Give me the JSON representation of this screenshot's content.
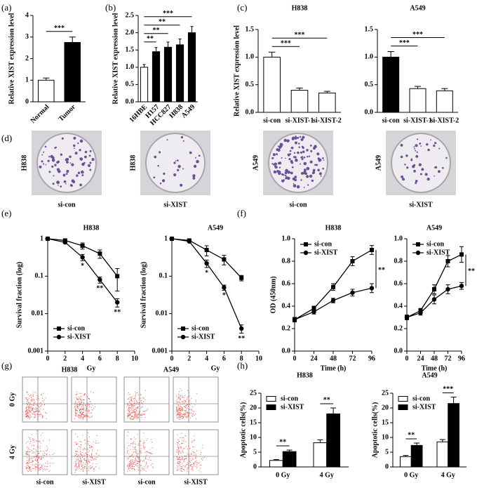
{
  "panel_labels": [
    "(a)",
    "(b)",
    "(c)",
    "(d)",
    "(e)",
    "(f)",
    "(g)",
    "(h)"
  ],
  "colony": {
    "plates": [
      {
        "cell": "H838",
        "group": "si-con"
      },
      {
        "cell": "H838",
        "group": "si-XIST"
      },
      {
        "cell": "A549",
        "group": "si-con"
      },
      {
        "cell": "A549",
        "group": "si-XIST"
      }
    ]
  },
  "flow": {
    "cells": [
      "H838",
      "A549"
    ],
    "doses": [
      "0 Gy",
      "4 Gy"
    ],
    "groups": [
      "si-con",
      "si-XIST",
      "si-con",
      "si-XIST"
    ]
  },
  "chart_data": [
    {
      "type": "bar",
      "categories": [
        "Normal",
        "Tumor"
      ],
      "values": [
        1.0,
        2.75
      ],
      "errors": [
        0.1,
        0.25
      ],
      "colors": [
        "#ffffff",
        "#000000"
      ],
      "y_label": "Relative XIST expression level",
      "ylim": [
        0,
        4
      ],
      "yticks": [
        0,
        1,
        2,
        3,
        4
      ],
      "brackets": [
        {
          "text": "***",
          "between": [
            0,
            1
          ]
        }
      ]
    },
    {
      "type": "bar",
      "categories": [
        "16HBE",
        "H157",
        "HCC827",
        "H838",
        "A549"
      ],
      "values": [
        1.0,
        1.45,
        1.58,
        1.65,
        2.0
      ],
      "errors": [
        0.08,
        0.12,
        0.15,
        0.17,
        0.18
      ],
      "colors": [
        "#ffffff",
        "#000000",
        "#000000",
        "#000000",
        "#000000"
      ],
      "y_label": "Relative XIST expression level",
      "ylim": [
        0,
        2.5
      ],
      "yticks": [
        {
          "value": 0,
          "label": "0.0"
        },
        0.5,
        {
          "value": 1,
          "label": "1.0"
        },
        1.5,
        {
          "value": 2,
          "label": "2.0"
        },
        2.5
      ],
      "brackets": [
        {
          "text": "**",
          "between": [
            0,
            1
          ]
        },
        {
          "text": "**",
          "between": [
            0,
            2
          ]
        },
        {
          "text": "**",
          "between": [
            0,
            3
          ]
        },
        {
          "text": "***",
          "between": [
            0,
            4
          ]
        }
      ]
    },
    {
      "type": "bar",
      "title": "H838",
      "categories": [
        "si-con",
        "si-XIST-1",
        "si-XIST-2"
      ],
      "values": [
        1.0,
        0.4,
        0.35
      ],
      "errors": [
        0.09,
        0.04,
        0.03
      ],
      "colors": [
        "#ffffff",
        "#ffffff",
        "#ffffff"
      ],
      "y_label": "Relative XIST expression  level",
      "ylim": [
        0,
        1.5
      ],
      "yticks": [
        {
          "value": 0,
          "label": "0.0"
        },
        0.5,
        {
          "value": 1,
          "label": "1.0"
        },
        1.5
      ],
      "brackets": [
        {
          "text": "***",
          "between": [
            0,
            1
          ]
        },
        {
          "text": "***",
          "between": [
            0,
            2
          ]
        }
      ]
    },
    {
      "type": "bar",
      "title": "A549",
      "categories": [
        "si-con",
        "si-XIST-1",
        "si-XIST-2"
      ],
      "values": [
        1.0,
        0.43,
        0.39
      ],
      "errors": [
        0.1,
        0.04,
        0.04
      ],
      "colors": [
        "#000000",
        "#ffffff",
        "#ffffff"
      ],
      "ylim": [
        0,
        1.5
      ],
      "yticks": [
        {
          "value": 0,
          "label": "0.0"
        },
        0.5,
        {
          "value": 1,
          "label": "1.0"
        },
        1.5
      ],
      "brackets": [
        {
          "text": "***",
          "between": [
            0,
            1
          ]
        },
        {
          "text": "***",
          "between": [
            0,
            2
          ]
        }
      ]
    },
    {
      "type": "line",
      "title": "H838",
      "x": [
        0,
        2,
        4,
        6,
        8
      ],
      "series": [
        {
          "name": "si-con",
          "color": "#000000",
          "marker": "square",
          "values": [
            1,
            0.9,
            0.65,
            0.4,
            0.1
          ],
          "errors": [
            0,
            0.05,
            0.12,
            0.1,
            0.06
          ]
        },
        {
          "name": "si-XIST",
          "color": "#000000",
          "marker": "circle",
          "values": [
            1,
            0.8,
            0.32,
            0.08,
            0.02
          ],
          "errors": [
            0,
            0.05,
            0.06,
            0.015,
            0.005
          ],
          "point_labels": [
            null,
            null,
            "*",
            "**",
            "**"
          ]
        }
      ],
      "y_label": "Survival fraction (log)",
      "x_label": "Gy",
      "log_y": true,
      "ylim": [
        0.001,
        1
      ],
      "yticks": [
        0.001,
        0.01,
        0.1,
        1
      ],
      "xlim": [
        0,
        10
      ],
      "xticks": [
        0,
        2,
        4,
        6,
        8,
        10
      ],
      "legend": "lower left"
    },
    {
      "type": "line",
      "title": "A549",
      "x": [
        0,
        2,
        4,
        6,
        8
      ],
      "series": [
        {
          "name": "si-con",
          "color": "#000000",
          "marker": "square",
          "values": [
            1,
            0.9,
            0.5,
            0.28,
            0.09
          ],
          "errors": [
            0,
            0.05,
            0.15,
            0.08,
            0.015
          ]
        },
        {
          "name": "si-XIST",
          "color": "#000000",
          "marker": "circle",
          "values": [
            1,
            0.85,
            0.22,
            0.05,
            0.004
          ],
          "errors": [
            0,
            0.05,
            0.05,
            0.008,
            0.001
          ],
          "point_labels": [
            null,
            null,
            "*",
            "*",
            "**"
          ]
        }
      ],
      "y_label": "Survival fraction (log)",
      "x_label": "Gy",
      "log_y": true,
      "ylim": [
        0.001,
        1
      ],
      "yticks": [
        0.001,
        0.01,
        0.1,
        1
      ],
      "xlim": [
        0,
        10
      ],
      "xticks": [
        0,
        2,
        4,
        6,
        8,
        10
      ],
      "legend": "lower left"
    },
    {
      "type": "line",
      "title": "H838",
      "x": [
        0,
        24,
        48,
        72,
        96
      ],
      "series": [
        {
          "name": "si-con",
          "color": "#000000",
          "marker": "square",
          "values": [
            0.28,
            0.38,
            0.57,
            0.8,
            0.9
          ],
          "errors": [
            0.02,
            0.02,
            0.03,
            0.04,
            0.04
          ]
        },
        {
          "name": "si-XIST",
          "color": "#000000",
          "marker": "circle",
          "values": [
            0.28,
            0.35,
            0.45,
            0.52,
            0.56
          ],
          "errors": [
            0.02,
            0.02,
            0.02,
            0.03,
            0.04
          ]
        }
      ],
      "y_label": "OD (450nm)",
      "x_label": "Time (h)",
      "ylim": [
        0,
        1
      ],
      "yticks": [
        {
          "value": 0,
          "label": "0.0"
        },
        0.2,
        0.4,
        0.6,
        0.8,
        {
          "value": 1,
          "label": "1.0"
        }
      ],
      "xlim": [
        0,
        96
      ],
      "xticks": [
        0,
        24,
        48,
        72,
        96
      ],
      "legend": "upper left",
      "annotation": "**"
    },
    {
      "type": "line",
      "title": "A549",
      "x": [
        0,
        24,
        48,
        72,
        96
      ],
      "series": [
        {
          "name": "si-con",
          "color": "#000000",
          "marker": "square",
          "values": [
            0.3,
            0.36,
            0.55,
            0.8,
            0.86
          ],
          "errors": [
            0.02,
            0.02,
            0.04,
            0.05,
            0.07
          ]
        },
        {
          "name": "si-XIST",
          "color": "#000000",
          "marker": "circle",
          "values": [
            0.3,
            0.34,
            0.46,
            0.55,
            0.58
          ],
          "errors": [
            0.02,
            0.02,
            0.04,
            0.04,
            0.03
          ]
        }
      ],
      "x_label": "Time (h)",
      "ylim": [
        0,
        1
      ],
      "yticks": [
        {
          "value": 0,
          "label": "0.0"
        },
        0.2,
        0.4,
        0.6,
        0.8,
        {
          "value": 1,
          "label": "1.0"
        }
      ],
      "xlim": [
        0,
        96
      ],
      "xticks": [
        0,
        24,
        48,
        72,
        96
      ],
      "legend": "upper left",
      "annotation": "**"
    },
    {
      "type": "grouped_bar",
      "title": "H838",
      "categories": [
        "0 Gy",
        "4 Gy"
      ],
      "series": [
        {
          "name": "si-con",
          "color": "#ffffff",
          "values": [
            2.2,
            8.2
          ],
          "errors": [
            0.3,
            1.0
          ]
        },
        {
          "name": "si-XIST",
          "color": "#000000",
          "values": [
            5.2,
            18
          ],
          "errors": [
            0.5,
            2.0
          ]
        }
      ],
      "y_label": "Apoptotic cells(%)",
      "ylim": [
        0,
        25
      ],
      "yticks": [
        0,
        5,
        10,
        15,
        20,
        25
      ],
      "legend": "upper left",
      "brackets": [
        {
          "text": "**",
          "category": 0
        },
        {
          "text": "**",
          "category": 1
        }
      ]
    },
    {
      "type": "grouped_bar",
      "title": "A549",
      "categories": [
        "0 Gy",
        "4 Gy"
      ],
      "series": [
        {
          "name": "si-con",
          "color": "#ffffff",
          "values": [
            3.5,
            8.5
          ],
          "errors": [
            0.4,
            0.8
          ]
        },
        {
          "name": "si-XIST",
          "color": "#000000",
          "values": [
            7.3,
            21.5
          ],
          "errors": [
            0.8,
            2.2
          ]
        }
      ],
      "y_label": "Apoptotic cells(%)",
      "ylim": [
        0,
        25
      ],
      "yticks": [
        0,
        5,
        10,
        15,
        20,
        25
      ],
      "legend": "upper left",
      "brackets": [
        {
          "text": "**",
          "category": 0
        },
        {
          "text": "***",
          "category": 1
        }
      ]
    }
  ]
}
